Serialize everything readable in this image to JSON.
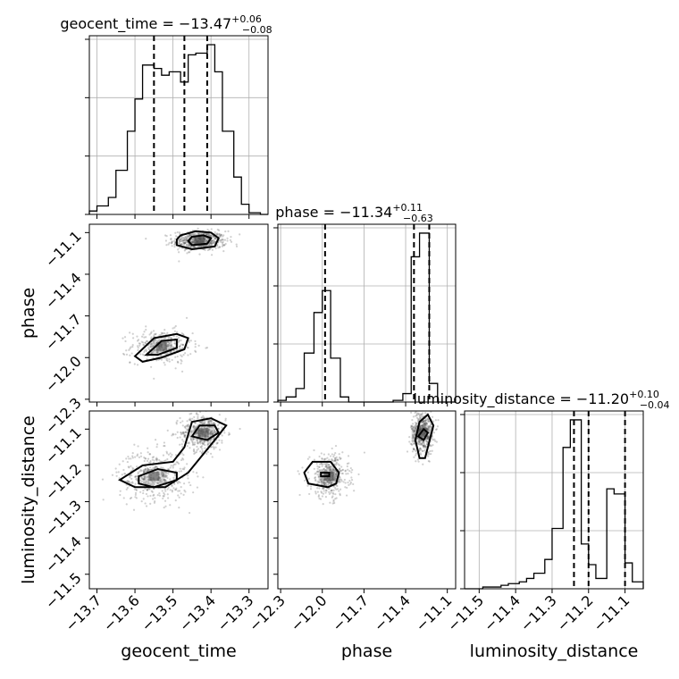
{
  "chart_data": {
    "type": "scatter",
    "kind": "corner-plot",
    "parameters": [
      {
        "name": "geocent_time",
        "xlabel": "geocent_time",
        "title": "geocent_time = −13.47",
        "title_sup": "+0.06",
        "title_sub": "−0.08",
        "median": -13.47,
        "q_low": -13.55,
        "q_high": -13.41,
        "range": [
          -13.72,
          -13.25
        ],
        "ticks": [
          -13.7,
          -13.6,
          -13.5,
          -13.4,
          -13.3
        ],
        "tick_labels": [
          "−13.7",
          "−13.6",
          "−13.5",
          "−13.4",
          "−13.3"
        ],
        "hist_edges": [
          -13.72,
          -13.7,
          -13.67,
          -13.65,
          -13.62,
          -13.6,
          -13.58,
          -13.55,
          -13.53,
          -13.51,
          -13.48,
          -13.46,
          -13.44,
          -13.41,
          -13.39,
          -13.37,
          -13.34,
          -13.32,
          -13.3,
          -13.27,
          -13.25
        ],
        "hist_values": [
          0.02,
          0.05,
          0.1,
          0.26,
          0.49,
          0.68,
          0.88,
          0.86,
          0.82,
          0.84,
          0.78,
          0.94,
          0.95,
          1.0,
          0.84,
          0.49,
          0.22,
          0.06,
          0.01,
          0.0
        ]
      },
      {
        "name": "phase",
        "xlabel": "phase",
        "ylabel": "phase",
        "title": "phase = −11.34",
        "title_sup": "+0.11",
        "title_sub": "−0.63",
        "median": -11.34,
        "q_low": -11.98,
        "q_high": -11.23,
        "range": [
          -12.32,
          -11.04
        ],
        "ticks": [
          -12.3,
          -12.0,
          -11.7,
          -11.4,
          -11.1
        ],
        "tick_labels": [
          "−12.3",
          "−12.0",
          "−11.7",
          "−11.4",
          "−11.1"
        ],
        "hist_edges": [
          -12.32,
          -12.26,
          -12.19,
          -12.13,
          -12.06,
          -12.0,
          -11.94,
          -11.87,
          -11.81,
          -11.74,
          -11.68,
          -11.62,
          -11.55,
          -11.49,
          -11.42,
          -11.36,
          -11.3,
          -11.23,
          -11.17,
          -11.1,
          -11.04
        ],
        "hist_values": [
          0.01,
          0.03,
          0.08,
          0.29,
          0.53,
          0.66,
          0.26,
          0.03,
          0.0,
          0.0,
          0.0,
          0.0,
          0.0,
          0.01,
          0.05,
          0.86,
          1.0,
          0.11,
          0.0,
          0.0
        ]
      },
      {
        "name": "luminosity_distance",
        "xlabel": "luminosity_distance",
        "ylabel": "luminosity_distance",
        "title": "luminosity_distance = −11.20",
        "title_sup": "+0.10",
        "title_sub": "−0.04",
        "median": -11.2,
        "q_low": -11.24,
        "q_high": -11.1,
        "range": [
          -11.54,
          -11.05
        ],
        "ticks": [
          -11.5,
          -11.4,
          -11.3,
          -11.2,
          -11.1
        ],
        "tick_labels": [
          "−11.5",
          "−11.4",
          "−11.3",
          "−11.2",
          "−11.1"
        ],
        "hist_edges": [
          -11.54,
          -11.51,
          -11.49,
          -11.47,
          -11.44,
          -11.42,
          -11.39,
          -11.37,
          -11.35,
          -11.32,
          -11.3,
          -11.27,
          -11.25,
          -11.22,
          -11.2,
          -11.18,
          -11.15,
          -11.13,
          -11.1,
          -11.08,
          -11.05
        ],
        "hist_values": [
          0.0,
          0.0,
          0.01,
          0.01,
          0.02,
          0.03,
          0.04,
          0.06,
          0.09,
          0.17,
          0.35,
          0.82,
          0.98,
          0.26,
          0.14,
          0.06,
          0.58,
          0.55,
          0.15,
          0.04
        ]
      }
    ],
    "pairs": [
      {
        "x": "geocent_time",
        "y": "phase",
        "clusters": [
          {
            "center": [
              -13.43,
              -11.16
            ],
            "sd": [
              0.035,
              0.035
            ],
            "weight": 0.62
          },
          {
            "center": [
              -13.53,
              -11.92
            ],
            "sd": [
              0.04,
              0.06
            ],
            "weight": 0.38
          }
        ],
        "contours": [
          [
            [
              -13.48,
              -11.12
            ],
            [
              -13.44,
              -11.09
            ],
            [
              -13.4,
              -11.1
            ],
            [
              -13.38,
              -11.14
            ],
            [
              -13.39,
              -11.2
            ],
            [
              -13.45,
              -11.22
            ],
            [
              -13.49,
              -11.19
            ],
            [
              -13.49,
              -11.15
            ]
          ],
          [
            [
              -13.45,
              -11.13
            ],
            [
              -13.42,
              -11.12
            ],
            [
              -13.4,
              -11.14
            ],
            [
              -13.41,
              -11.18
            ],
            [
              -13.45,
              -11.19
            ],
            [
              -13.46,
              -11.16
            ]
          ],
          [
            [
              -13.6,
              -11.99
            ],
            [
              -13.55,
              -11.86
            ],
            [
              -13.49,
              -11.83
            ],
            [
              -13.46,
              -11.86
            ],
            [
              -13.47,
              -11.94
            ],
            [
              -13.53,
              -12.0
            ],
            [
              -13.58,
              -12.03
            ]
          ],
          [
            [
              -13.57,
              -11.98
            ],
            [
              -13.53,
              -11.88
            ],
            [
              -13.49,
              -11.87
            ],
            [
              -13.49,
              -11.93
            ],
            [
              -13.54,
              -11.98
            ]
          ]
        ]
      },
      {
        "x": "geocent_time",
        "y": "luminosity_distance",
        "clusters": [
          {
            "center": [
              -13.42,
              -11.11
            ],
            "sd": [
              0.03,
              0.025
            ],
            "weight": 0.5
          },
          {
            "center": [
              -13.55,
              -11.23
            ],
            "sd": [
              0.045,
              0.035
            ],
            "weight": 0.5
          }
        ],
        "contours": [
          [
            [
              -13.64,
              -11.24
            ],
            [
              -13.58,
              -11.2
            ],
            [
              -13.5,
              -11.19
            ],
            [
              -13.47,
              -11.15
            ],
            [
              -13.45,
              -11.08
            ],
            [
              -13.4,
              -11.07
            ],
            [
              -13.36,
              -11.09
            ],
            [
              -13.39,
              -11.13
            ],
            [
              -13.46,
              -11.22
            ],
            [
              -13.52,
              -11.26
            ],
            [
              -13.6,
              -11.26
            ]
          ],
          [
            [
              -13.59,
              -11.23
            ],
            [
              -13.54,
              -11.21
            ],
            [
              -13.49,
              -11.22
            ],
            [
              -13.49,
              -11.24
            ],
            [
              -13.55,
              -11.26
            ],
            [
              -13.59,
              -11.25
            ]
          ],
          [
            [
              -13.45,
              -11.12
            ],
            [
              -13.43,
              -11.09
            ],
            [
              -13.39,
              -11.09
            ],
            [
              -13.38,
              -11.11
            ],
            [
              -13.41,
              -11.13
            ]
          ]
        ]
      },
      {
        "x": "phase",
        "y": "luminosity_distance",
        "clusters": [
          {
            "center": [
              -11.28,
              -11.11
            ],
            "sd": [
              0.04,
              0.03
            ],
            "weight": 0.55
          },
          {
            "center": [
              -11.95,
              -11.23
            ],
            "sd": [
              0.07,
              0.03
            ],
            "weight": 0.45
          }
        ],
        "contours": [
          [
            [
              -12.13,
              -11.22
            ],
            [
              -12.07,
              -11.19
            ],
            [
              -11.94,
              -11.19
            ],
            [
              -11.88,
              -11.22
            ],
            [
              -11.9,
              -11.25
            ],
            [
              -11.96,
              -11.26
            ],
            [
              -12.1,
              -11.25
            ]
          ],
          [
            [
              -12.01,
              -11.22
            ],
            [
              -11.95,
              -11.22
            ],
            [
              -11.95,
              -11.23
            ],
            [
              -12.01,
              -11.23
            ]
          ],
          [
            [
              -11.33,
              -11.13
            ],
            [
              -11.3,
              -11.08
            ],
            [
              -11.24,
              -11.06
            ],
            [
              -11.2,
              -11.09
            ],
            [
              -11.26,
              -11.18
            ],
            [
              -11.3,
              -11.18
            ]
          ],
          [
            [
              -11.31,
              -11.12
            ],
            [
              -11.27,
              -11.1
            ],
            [
              -11.24,
              -11.11
            ],
            [
              -11.27,
              -11.13
            ]
          ]
        ]
      }
    ]
  }
}
